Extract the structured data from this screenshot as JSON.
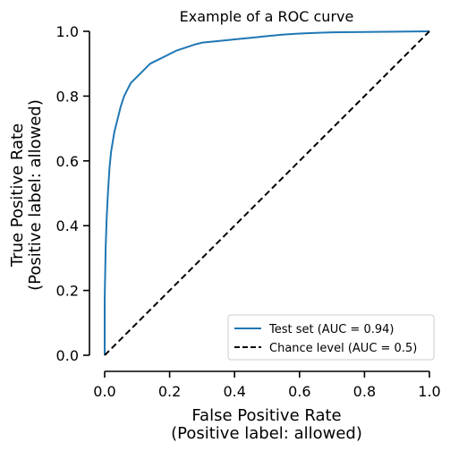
{
  "chart_data": {
    "type": "line",
    "title": "Example of a ROC curve",
    "xlabel": [
      "False Positive Rate",
      "(Positive label: allowed)"
    ],
    "ylabel": [
      "True Positive Rate",
      "(Positive label: allowed)"
    ],
    "xlim": [
      0,
      1
    ],
    "ylim": [
      0,
      1
    ],
    "xticks": [
      "0.0",
      "0.2",
      "0.4",
      "0.6",
      "0.8",
      "1.0"
    ],
    "yticks": [
      "0.0",
      "0.2",
      "0.4",
      "0.6",
      "0.8",
      "1.0"
    ],
    "grid": false,
    "legend_position": "lower-right",
    "series": [
      {
        "name": "Test set (AUC = 0.94)",
        "color": "#1f77b4",
        "style": "solid",
        "x": [
          0.0,
          0.0,
          0.003,
          0.006,
          0.01,
          0.015,
          0.02,
          0.03,
          0.04,
          0.05,
          0.06,
          0.07,
          0.08,
          0.09,
          0.1,
          0.12,
          0.14,
          0.16,
          0.18,
          0.2,
          0.22,
          0.25,
          0.28,
          0.3,
          0.35,
          0.4,
          0.45,
          0.5,
          0.55,
          0.6,
          0.65,
          0.7,
          0.8,
          0.9,
          1.0
        ],
        "y": [
          0.0,
          0.17,
          0.33,
          0.42,
          0.5,
          0.58,
          0.63,
          0.69,
          0.73,
          0.77,
          0.8,
          0.82,
          0.84,
          0.85,
          0.86,
          0.88,
          0.9,
          0.91,
          0.92,
          0.93,
          0.94,
          0.95,
          0.96,
          0.965,
          0.97,
          0.975,
          0.98,
          0.985,
          0.99,
          0.993,
          0.995,
          0.997,
          0.998,
          0.999,
          1.0
        ]
      },
      {
        "name": "Chance level (AUC = 0.5)",
        "color": "#000000",
        "style": "dashed",
        "x": [
          0,
          1
        ],
        "y": [
          0,
          1
        ]
      }
    ]
  }
}
